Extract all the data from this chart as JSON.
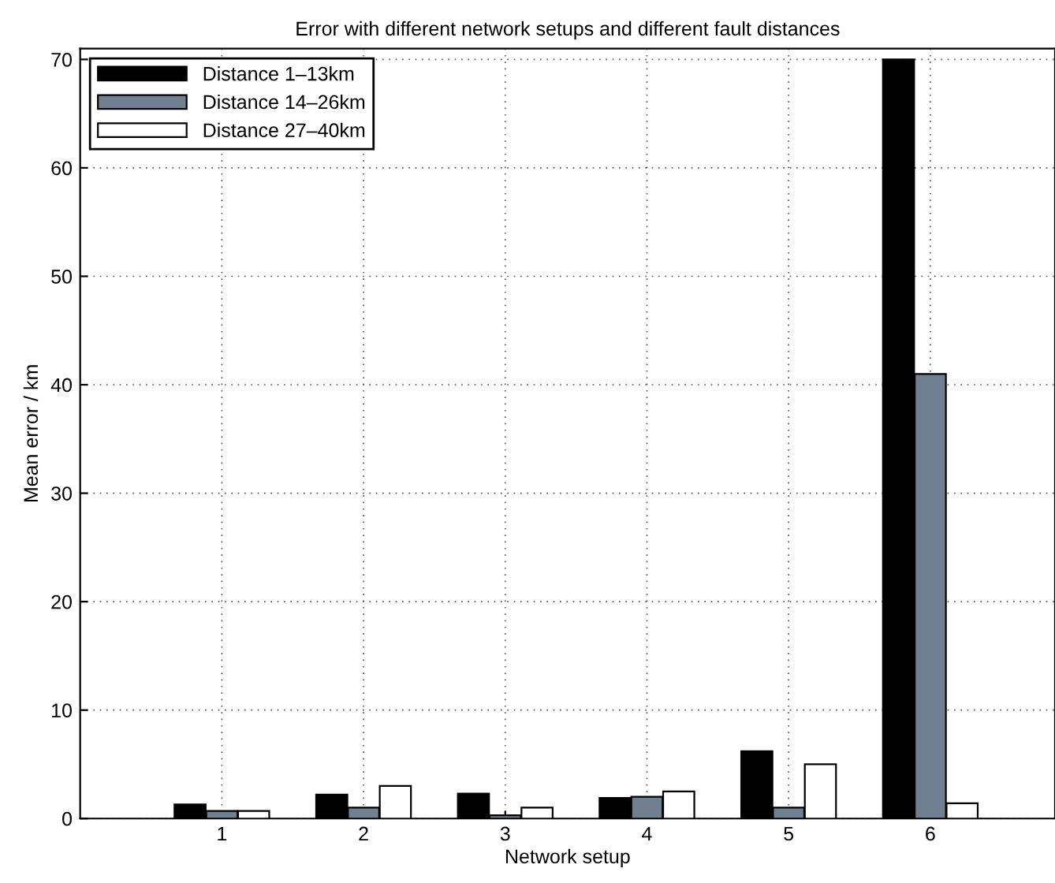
{
  "chart_data": {
    "type": "bar",
    "title": "Error with different network setups and different fault distances",
    "xlabel": "Network setup",
    "ylabel": "Mean error / km",
    "categories": [
      "1",
      "2",
      "3",
      "4",
      "5",
      "6"
    ],
    "series": [
      {
        "name": "Distance 1–13km",
        "color": "#000000",
        "values": [
          1.3,
          2.2,
          2.3,
          1.9,
          6.2,
          70
        ]
      },
      {
        "name": "Distance 14–26km",
        "color": "#708090",
        "values": [
          0.7,
          1.0,
          0.3,
          2.0,
          1.0,
          41
        ]
      },
      {
        "name": "Distance 27–40km",
        "color": "#ffffff",
        "values": [
          0.7,
          3.0,
          1.0,
          2.5,
          5.0,
          1.4
        ]
      }
    ],
    "ylim": [
      0,
      71
    ],
    "yticks": [
      0,
      10,
      20,
      30,
      40,
      50,
      60,
      70
    ],
    "grid": true,
    "legend": "top left"
  }
}
